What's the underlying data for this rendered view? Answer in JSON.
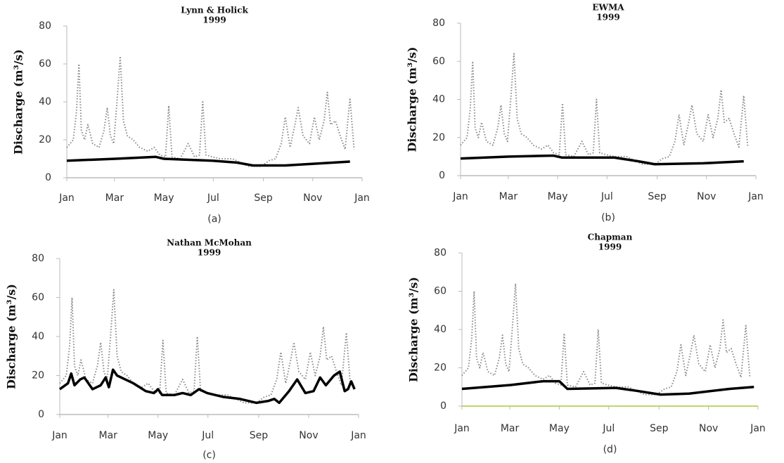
{
  "chart_data": [
    {
      "type": "line",
      "title": "Lynn & Holick",
      "subtitle": "1999",
      "label": "(a)",
      "y_label": "Discharge (m³/s)",
      "xlim": [
        0,
        365
      ],
      "xticks": [
        {
          "value": 0,
          "label": "Jan"
        },
        {
          "value": 59,
          "label": "Mar"
        },
        {
          "value": 120,
          "label": "May"
        },
        {
          "value": 181,
          "label": "Jul"
        },
        {
          "value": 243,
          "label": "Sep"
        },
        {
          "value": 304,
          "label": "Nov"
        },
        {
          "value": 365,
          "label": "Jan"
        }
      ],
      "ylim": [
        0,
        80
      ],
      "yticks": [
        0,
        20,
        40,
        60,
        80
      ],
      "axis_color": "#bbbbbb",
      "series": [
        {
          "style": "dotted",
          "color": "#8a8a8a",
          "x": [
            0,
            8,
            12,
            15,
            18,
            22,
            26,
            32,
            40,
            46,
            50,
            54,
            58,
            62,
            66,
            70,
            75,
            82,
            90,
            100,
            108,
            115,
            122,
            126,
            130,
            140,
            150,
            158,
            164,
            168,
            172,
            180,
            190,
            205,
            215,
            225,
            240,
            250,
            258,
            265,
            270,
            276,
            282,
            286,
            292,
            300,
            306,
            312,
            318,
            322,
            326,
            332,
            338,
            344,
            350,
            355
          ],
          "values": [
            16,
            20,
            35,
            60,
            25,
            20,
            28,
            18,
            16,
            25,
            37,
            22,
            18,
            40,
            64,
            30,
            22,
            20,
            16,
            14,
            16,
            12,
            11,
            38,
            11,
            10,
            18,
            11,
            12,
            40,
            12,
            11,
            10,
            10,
            8,
            6,
            6,
            9,
            10,
            18,
            32,
            16,
            28,
            37,
            22,
            18,
            32,
            20,
            30,
            45,
            28,
            30,
            22,
            15,
            42,
            15
          ]
        },
        {
          "style": "solid",
          "color": "#000000",
          "x": [
            0,
            60,
            110,
            120,
            180,
            210,
            230,
            270,
            330,
            350
          ],
          "values": [
            9,
            10,
            11,
            10,
            9,
            8,
            6.5,
            6.5,
            8,
            8.5
          ]
        }
      ]
    },
    {
      "type": "line",
      "title": "EWMA",
      "subtitle": "1999",
      "label": "(b)",
      "y_label": "Discharge (m³/s)",
      "xlim": [
        0,
        365
      ],
      "xticks": [
        {
          "value": 0,
          "label": "Jan"
        },
        {
          "value": 59,
          "label": "Mar"
        },
        {
          "value": 120,
          "label": "May"
        },
        {
          "value": 181,
          "label": "Jul"
        },
        {
          "value": 243,
          "label": "Sep"
        },
        {
          "value": 304,
          "label": "Nov"
        },
        {
          "value": 365,
          "label": "Jan"
        }
      ],
      "ylim": [
        0,
        80
      ],
      "yticks": [
        0,
        20,
        40,
        60,
        80
      ],
      "axis_color": "#bbbbbb",
      "series": [
        {
          "style": "dotted",
          "color": "#8a8a8a",
          "x": [
            0,
            8,
            12,
            15,
            18,
            22,
            26,
            32,
            40,
            46,
            50,
            54,
            58,
            62,
            66,
            70,
            75,
            82,
            90,
            100,
            108,
            115,
            122,
            126,
            130,
            140,
            150,
            158,
            164,
            168,
            172,
            180,
            190,
            205,
            215,
            225,
            240,
            250,
            258,
            265,
            270,
            276,
            282,
            286,
            292,
            300,
            306,
            312,
            318,
            322,
            326,
            332,
            338,
            344,
            350,
            355
          ],
          "values": [
            16,
            20,
            35,
            60,
            25,
            20,
            28,
            18,
            16,
            25,
            37,
            22,
            18,
            40,
            64,
            30,
            22,
            20,
            16,
            14,
            16,
            12,
            11,
            38,
            11,
            10,
            18,
            11,
            12,
            40,
            12,
            11,
            10,
            10,
            8,
            6,
            6,
            9,
            10,
            18,
            32,
            16,
            28,
            37,
            22,
            18,
            32,
            20,
            30,
            45,
            28,
            30,
            22,
            15,
            42,
            15
          ]
        },
        {
          "style": "solid",
          "color": "#000000",
          "x": [
            0,
            60,
            115,
            125,
            190,
            220,
            240,
            300,
            350
          ],
          "values": [
            9,
            10,
            10.5,
            9.5,
            9.5,
            7.5,
            6,
            6.5,
            7.5
          ]
        }
      ]
    },
    {
      "type": "line",
      "title": "Nathan McMohan",
      "subtitle": "1999",
      "label": "(c)",
      "y_label": "Discharge (m³/s)",
      "xlim": [
        0,
        365
      ],
      "xticks": [
        {
          "value": 0,
          "label": "Jan"
        },
        {
          "value": 59,
          "label": "Mar"
        },
        {
          "value": 120,
          "label": "May"
        },
        {
          "value": 181,
          "label": "Jul"
        },
        {
          "value": 243,
          "label": "Sep"
        },
        {
          "value": 304,
          "label": "Nov"
        },
        {
          "value": 365,
          "label": "Jan"
        }
      ],
      "ylim": [
        0,
        80
      ],
      "yticks": [
        0,
        20,
        40,
        60,
        80
      ],
      "axis_color": "#bbbbbb",
      "series": [
        {
          "style": "dotted",
          "color": "#8a8a8a",
          "x": [
            0,
            8,
            12,
            15,
            18,
            22,
            26,
            32,
            40,
            46,
            50,
            54,
            58,
            62,
            66,
            70,
            75,
            82,
            90,
            100,
            108,
            115,
            122,
            126,
            130,
            140,
            150,
            158,
            164,
            168,
            172,
            180,
            190,
            205,
            215,
            225,
            240,
            250,
            258,
            265,
            270,
            276,
            282,
            286,
            292,
            300,
            306,
            312,
            318,
            322,
            326,
            332,
            338,
            344,
            350,
            355
          ],
          "values": [
            16,
            20,
            35,
            60,
            25,
            20,
            28,
            18,
            16,
            25,
            37,
            22,
            18,
            40,
            64,
            30,
            22,
            20,
            16,
            14,
            16,
            12,
            11,
            38,
            11,
            10,
            18,
            11,
            12,
            40,
            12,
            11,
            10,
            10,
            8,
            6,
            6,
            9,
            10,
            18,
            32,
            16,
            28,
            37,
            22,
            18,
            32,
            20,
            30,
            45,
            28,
            30,
            22,
            15,
            42,
            15
          ]
        },
        {
          "style": "solid",
          "color": "#000000",
          "x": [
            0,
            10,
            14,
            18,
            25,
            30,
            40,
            50,
            56,
            60,
            65,
            70,
            80,
            90,
            105,
            115,
            120,
            125,
            140,
            150,
            160,
            170,
            180,
            200,
            220,
            240,
            255,
            262,
            268,
            280,
            290,
            300,
            310,
            318,
            325,
            335,
            342,
            348,
            352,
            356,
            360
          ],
          "values": [
            13,
            16,
            21,
            15,
            18,
            19,
            13,
            15,
            19,
            14,
            23,
            20,
            18,
            16,
            12,
            11,
            13,
            10,
            10,
            11,
            10,
            13,
            11,
            9,
            8,
            6,
            7,
            8,
            6,
            12,
            18,
            11,
            12,
            19,
            15,
            20,
            22,
            12,
            13,
            17,
            13
          ]
        }
      ]
    },
    {
      "type": "line",
      "title": "Chapman",
      "subtitle": "1999",
      "label": "(d)",
      "y_label": "Discharge (m³/s)",
      "xlim": [
        0,
        365
      ],
      "xticks": [
        {
          "value": 0,
          "label": "Jan"
        },
        {
          "value": 59,
          "label": "Mar"
        },
        {
          "value": 120,
          "label": "May"
        },
        {
          "value": 181,
          "label": "Jul"
        },
        {
          "value": 243,
          "label": "Sep"
        },
        {
          "value": 304,
          "label": "Nov"
        },
        {
          "value": 365,
          "label": "Jan"
        }
      ],
      "ylim": [
        0,
        80
      ],
      "yticks": [
        0,
        20,
        40,
        60,
        80
      ],
      "axis_color": "#a8c83a",
      "series": [
        {
          "style": "dotted",
          "color": "#8a8a8a",
          "x": [
            0,
            8,
            12,
            15,
            18,
            22,
            26,
            32,
            40,
            46,
            50,
            54,
            58,
            62,
            66,
            70,
            75,
            82,
            90,
            100,
            108,
            115,
            122,
            126,
            130,
            140,
            150,
            158,
            164,
            168,
            172,
            180,
            190,
            205,
            215,
            225,
            240,
            250,
            258,
            265,
            270,
            276,
            282,
            286,
            292,
            300,
            306,
            312,
            318,
            322,
            326,
            332,
            338,
            344,
            350,
            355
          ],
          "values": [
            16,
            20,
            35,
            60,
            25,
            20,
            28,
            18,
            16,
            25,
            37,
            22,
            18,
            40,
            64,
            30,
            22,
            20,
            16,
            14,
            16,
            12,
            11,
            38,
            11,
            10,
            18,
            11,
            12,
            40,
            12,
            11,
            10,
            10,
            8,
            6,
            6,
            9,
            10,
            18,
            32,
            16,
            28,
            37,
            22,
            18,
            32,
            20,
            30,
            45,
            28,
            30,
            22,
            15,
            42,
            15
          ]
        },
        {
          "style": "solid",
          "color": "#000000",
          "x": [
            0,
            60,
            100,
            120,
            130,
            190,
            215,
            245,
            280,
            330,
            360
          ],
          "values": [
            9,
            11,
            13,
            13,
            9,
            9.5,
            8,
            6,
            6.5,
            9,
            10
          ]
        }
      ]
    }
  ]
}
